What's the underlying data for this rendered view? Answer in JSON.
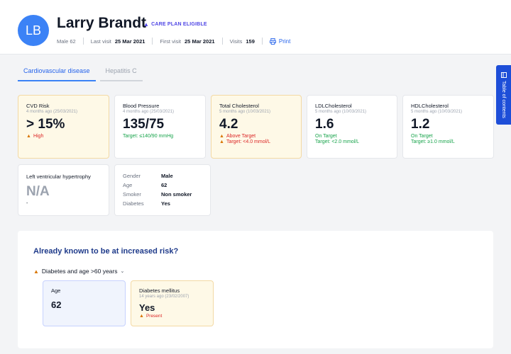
{
  "patient": {
    "initials": "LB",
    "name": "Larry Brandt",
    "badge": "CARE PLAN ELIGIBLE",
    "sex_age": "Male 62",
    "last_visit_label": "Last visit",
    "last_visit": "25 Mar 2021",
    "first_visit_label": "First visit",
    "first_visit": "25 Mar 2021",
    "visits_label": "Visits",
    "visits": "159",
    "print_label": "Print"
  },
  "tabs": [
    {
      "label": "Cardiovascular disease",
      "active": true
    },
    {
      "label": "Hepatitis C",
      "active": false
    }
  ],
  "toc_label": "Table of contents",
  "cards": {
    "cvd": {
      "title": "CVD Risk",
      "sub": "4 months ago (25/03/2021)",
      "value": "> 15%",
      "status": "High"
    },
    "bp": {
      "title": "Blood Pressure",
      "sub": "4 months ago (25/03/2021)",
      "value": "135/75",
      "target": "Target: ≤140/90 mmHg"
    },
    "tc": {
      "title": "Total Cholesterol",
      "sub": "5 months ago (10/03/2021)",
      "value": "4.2",
      "status": "Above Target",
      "target": "Target: <4.0 mmol/L"
    },
    "ldl": {
      "title": "LDLCholesterol",
      "sub": "5 months ago (10/03/2021)",
      "value": "1.6",
      "status": "On Target",
      "target": "Target: <2.0 mmol/L"
    },
    "hdl": {
      "title": "HDLCholesterol",
      "sub": "5 months ago (10/03/2021)",
      "value": "1.2",
      "status": "On Target",
      "target": "Target: ≥1.0 mmol/L"
    },
    "lvh": {
      "title": "Left ventricular hypertrophy",
      "value": "N/A",
      "note": "-"
    }
  },
  "demographics": [
    {
      "key": "Gender",
      "value": "Male"
    },
    {
      "key": "Age",
      "value": "62"
    },
    {
      "key": "Smoker",
      "value": "Non smoker"
    },
    {
      "key": "Diabetes",
      "value": "Yes"
    }
  ],
  "risk": {
    "title": "Already known to be at increased risk?",
    "condition": "Diabetes and age >60 years",
    "age": {
      "label": "Age",
      "value": "62"
    },
    "diabetes": {
      "label": "Diabetes mellitus",
      "sub": "14 years ago (23/02/2007)",
      "value": "Yes",
      "status": "Present"
    }
  },
  "colors": {
    "accent": "#2563eb",
    "warning_bg": "#fef9e7",
    "high": "#dc2626",
    "on_target": "#16a34a"
  }
}
